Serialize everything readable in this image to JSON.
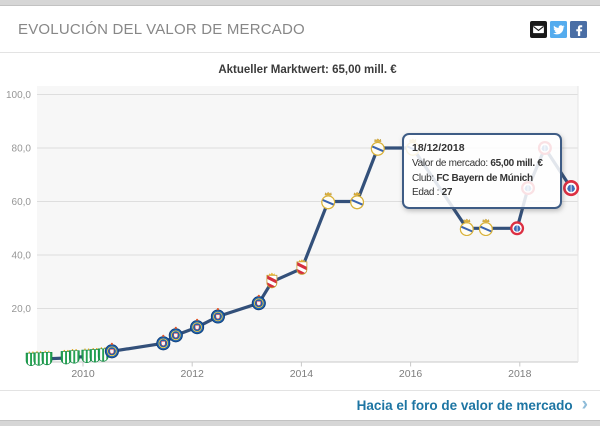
{
  "header": {
    "title": "EVOLUCIÓN DEL VALOR DE MERCADO",
    "share_icons": [
      "email-icon",
      "twitter-icon",
      "facebook-icon"
    ]
  },
  "colors": {
    "line": "#33507a",
    "link": "#1d75a3",
    "email_bg": "#1a1a1a",
    "twitter_bg": "#55acee",
    "facebook_bg": "#4a6ea5",
    "tooltip_border": "#3e5c85",
    "plot_bg": "#f7f7f7"
  },
  "chart_data": {
    "type": "line",
    "title": "Aktueller Marktwert: 65,00 mill. €",
    "ylim": [
      0,
      100
    ],
    "xlim": [
      2008.85,
      2019.05
    ],
    "grid": true,
    "legend": "none",
    "line_color": "#33507a",
    "y_ticks": [
      {
        "label": "100,0",
        "v": 100
      },
      {
        "label": "80,0",
        "v": 80
      },
      {
        "label": "60,0",
        "v": 60
      },
      {
        "label": "40,0",
        "v": 40
      },
      {
        "label": "20,0",
        "v": 20
      }
    ],
    "x_ticks": [
      {
        "label": "2010",
        "t": 2010
      },
      {
        "label": "2012",
        "t": 2012
      },
      {
        "label": "2014",
        "t": 2014
      },
      {
        "label": "2016",
        "t": 2016
      },
      {
        "label": "2018",
        "t": 2018
      }
    ],
    "points": [
      {
        "t": 2009.05,
        "v": 0.9,
        "club": "banfield"
      },
      {
        "t": 2009.19,
        "v": 1.0,
        "club": "banfield"
      },
      {
        "t": 2009.34,
        "v": 1.2,
        "club": "banfield"
      },
      {
        "t": 2009.69,
        "v": 1.5,
        "club": "banfield"
      },
      {
        "t": 2009.84,
        "v": 1.8,
        "club": "banfield"
      },
      {
        "t": 2010.07,
        "v": 2.0,
        "club": "banfield"
      },
      {
        "t": 2010.22,
        "v": 2.2,
        "club": "banfield"
      },
      {
        "t": 2010.37,
        "v": 2.5,
        "club": "banfield"
      },
      {
        "t": 2010.53,
        "v": 4,
        "club": "porto"
      },
      {
        "t": 2011.47,
        "v": 7,
        "club": "porto"
      },
      {
        "t": 2011.7,
        "v": 10,
        "club": "porto"
      },
      {
        "t": 2012.09,
        "v": 13,
        "club": "porto"
      },
      {
        "t": 2012.47,
        "v": 17,
        "club": "porto"
      },
      {
        "t": 2013.22,
        "v": 22,
        "club": "porto"
      },
      {
        "t": 2013.46,
        "v": 30,
        "club": "monaco"
      },
      {
        "t": 2014.01,
        "v": 35,
        "club": "monaco"
      },
      {
        "t": 2014.49,
        "v": 60,
        "club": "real-madrid"
      },
      {
        "t": 2015.02,
        "v": 60,
        "club": "real-madrid"
      },
      {
        "t": 2015.4,
        "v": 80,
        "club": "real-madrid"
      },
      {
        "t": 2016.04,
        "v": 80,
        "club": "real-madrid"
      },
      {
        "t": 2017.03,
        "v": 50,
        "club": "real-madrid"
      },
      {
        "t": 2017.38,
        "v": 50,
        "club": "real-madrid"
      },
      {
        "t": 2017.95,
        "v": 50,
        "club": "bayern"
      },
      {
        "t": 2018.15,
        "v": 65,
        "club": "bayern"
      },
      {
        "t": 2018.46,
        "v": 80,
        "club": "bayern"
      },
      {
        "t": 2018.94,
        "v": 65,
        "club": "bayern"
      }
    ]
  },
  "tooltip": {
    "date": "18/12/2018",
    "rows": [
      {
        "label": "Valor de mercado: ",
        "value": "65,00 mill. €"
      },
      {
        "label": "Club: ",
        "value": "FC Bayern de Múnich"
      },
      {
        "label": "Edad : ",
        "value": "27"
      }
    ]
  },
  "footer": {
    "link_label": "Hacia el foro de valor de mercado",
    "chevron": "›"
  }
}
